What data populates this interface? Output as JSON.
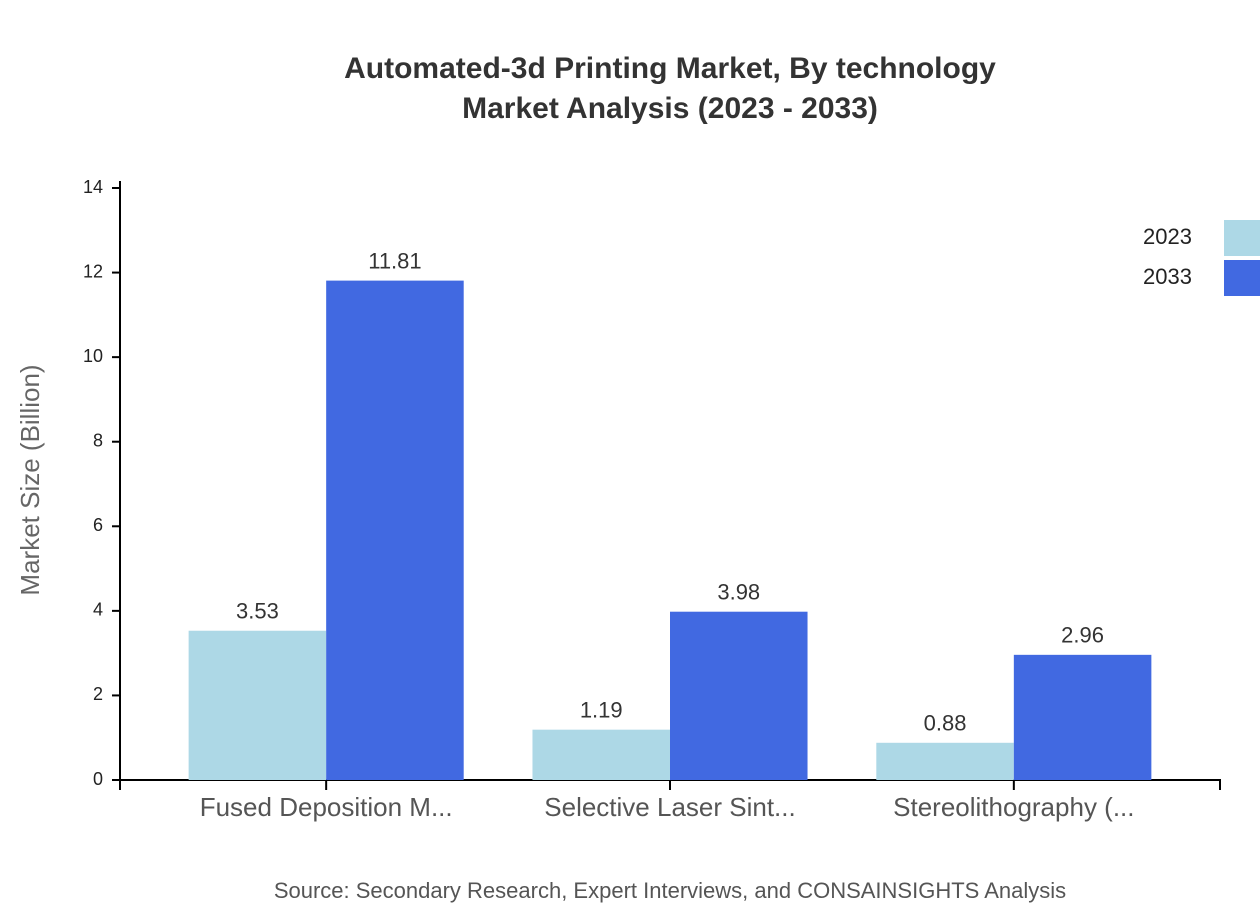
{
  "chart_data": {
    "type": "bar",
    "title": "Automated-3d Printing Market, By technology",
    "subtitle": "Market Analysis (2023 - 2033)",
    "y_label": "Market Size (Billion)",
    "source": "Source: Secondary Research, Expert Interviews, and CONSAINSIGHTS Analysis",
    "categories": [
      "Fused Deposition M...",
      "Selective Laser Sint...",
      "Stereolithography (..."
    ],
    "series": [
      {
        "name": "2023",
        "color": "#add8e6",
        "values": [
          3.53,
          1.19,
          0.88
        ]
      },
      {
        "name": "2033",
        "color": "#4169e1",
        "values": [
          11.81,
          3.98,
          2.96
        ]
      }
    ],
    "ylim": [
      0,
      14
    ],
    "yticks": [
      0,
      2,
      4,
      6,
      8,
      10,
      12,
      14
    ],
    "legend": "top-right"
  }
}
